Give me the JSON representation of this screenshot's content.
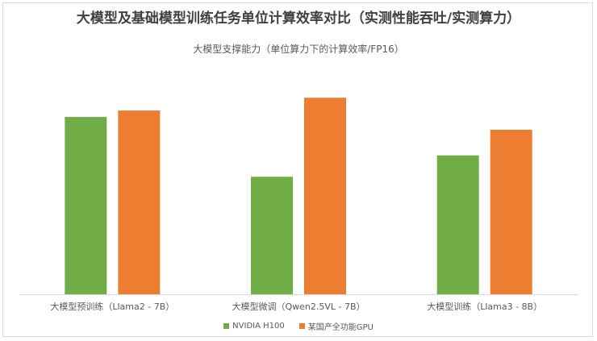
{
  "chart_data": {
    "type": "bar",
    "title": "大模型及基础模型训练任务单位计算效率对比（实测性能吞吐/实测算力）",
    "subtitle": "大模型支撑能力（单位算力下的计算效率/FP16）",
    "categories": [
      "大模型预训练（Llama2 - 7B）",
      "大模型微调（Qwen2.5VL - 7B）",
      "大模型训练（Llama3 - 8B）"
    ],
    "series": [
      {
        "name": "NVIDIA H100",
        "color": "#70ad47",
        "values": [
          0.83,
          0.55,
          0.65
        ]
      },
      {
        "name": "某国产全功能GPU",
        "color": "#ed7d31",
        "values": [
          0.86,
          0.92,
          0.77
        ]
      }
    ],
    "ylim": [
      0,
      1
    ],
    "grid": false,
    "legend_position": "bottom"
  }
}
